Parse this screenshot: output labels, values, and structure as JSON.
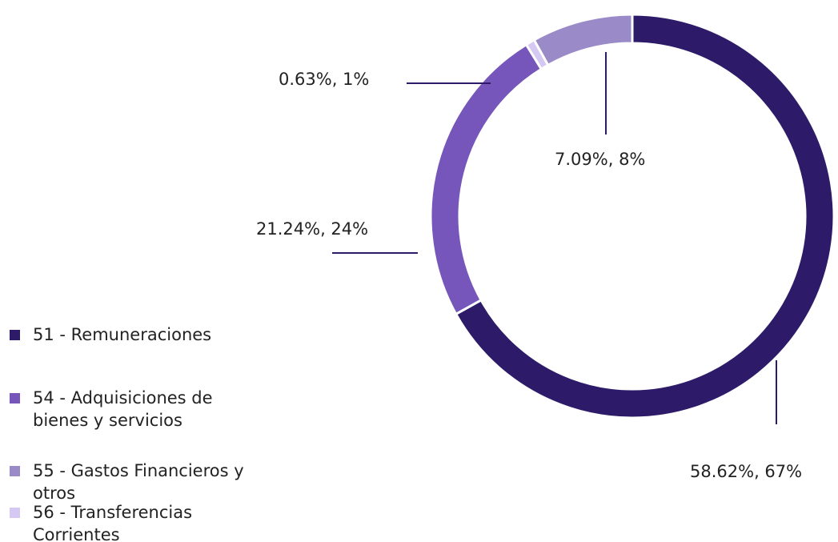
{
  "chart_data": {
    "type": "donut",
    "categories": [
      "51 - Remuneraciones",
      "54 - Adquisiciones de bienes y servicios",
      "55 - Gastos Financieros y otros",
      "56 - Transferencias Corrientes"
    ],
    "values": [
      58.62,
      21.24,
      7.09,
      0.63
    ],
    "value_labels": [
      "58.62%, 67%",
      "21.24%, 24%",
      "7.09%, 8%",
      "0.63%, 1%"
    ],
    "colors": [
      "#2d1b69",
      "#7656bb",
      "#9a8ac7",
      "#d5c8f3"
    ],
    "legend": "left"
  }
}
